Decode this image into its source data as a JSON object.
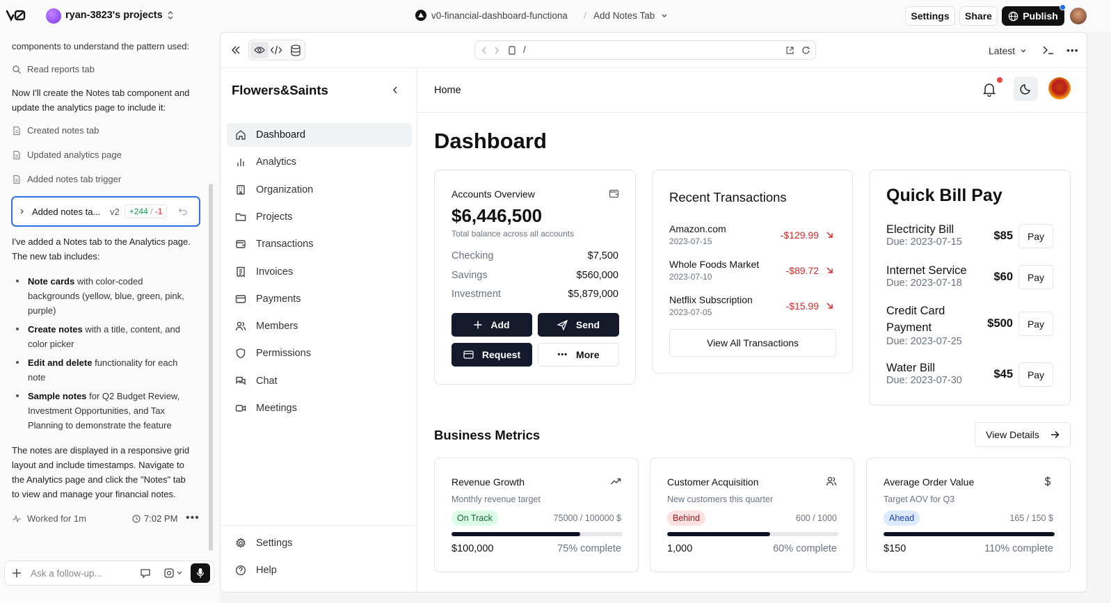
{
  "topbar": {
    "project": "ryan-3823's projects",
    "chat_title": "v0-financial-dashboard-functiona",
    "version_title": "Add Notes Tab",
    "settings": "Settings",
    "share": "Share",
    "publish": "Publish"
  },
  "chat": {
    "intro_cut": "components to understand the pattern used:",
    "step_read": "Read reports tab",
    "para1": [
      "Now I'll create the Notes tab component and",
      "update the analytics page to include it:"
    ],
    "steps": [
      "Created notes tab",
      "Updated analytics page",
      "Added notes tab trigger"
    ],
    "version_card": {
      "label": "Added notes ta...",
      "version": "v2",
      "added": "+244",
      "sep": "/",
      "removed": "-1"
    },
    "para2": [
      "I've added a Notes tab to the Analytics page.",
      "The new tab includes:"
    ],
    "bullets": [
      {
        "bold": "Note cards",
        "rest": " with color-coded backgrounds (yellow, blue, green, pink, purple)"
      },
      {
        "bold": "Create notes",
        "rest": " with a title, content, and color picker"
      },
      {
        "bold": "Edit and delete",
        "rest": " functionality for each note"
      },
      {
        "bold": "Sample notes",
        "rest": " for Q2 Budget Review, Investment Opportunities, and Tax Planning to demonstrate the feature"
      }
    ],
    "para3": [
      "The notes are displayed in a responsive grid",
      "layout and include timestamps. Navigate to",
      "the Analytics page and click the \"Notes\" tab",
      "to view and manage your financial notes."
    ],
    "worked": "Worked for 1m",
    "time": "7:02 PM",
    "input_placeholder": "Ask a follow-up..."
  },
  "preview_toolbar": {
    "url": "/",
    "latest": "Latest"
  },
  "app": {
    "brand": "Flowers&Saints",
    "breadcrumb": "Home",
    "nav": [
      {
        "label": "Dashboard",
        "icon": "home-icon",
        "active": true
      },
      {
        "label": "Analytics",
        "icon": "bar-chart-icon"
      },
      {
        "label": "Organization",
        "icon": "building-icon"
      },
      {
        "label": "Projects",
        "icon": "folder-icon"
      },
      {
        "label": "Transactions",
        "icon": "wallet-icon"
      },
      {
        "label": "Invoices",
        "icon": "receipt-icon"
      },
      {
        "label": "Payments",
        "icon": "credit-card-icon"
      },
      {
        "label": "Members",
        "icon": "users-icon"
      },
      {
        "label": "Permissions",
        "icon": "shield-icon"
      },
      {
        "label": "Chat",
        "icon": "chat-icon"
      },
      {
        "label": "Meetings",
        "icon": "video-icon"
      }
    ],
    "footer_nav": [
      {
        "label": "Settings",
        "icon": "gear-icon"
      },
      {
        "label": "Help",
        "icon": "help-icon"
      }
    ],
    "page_title": "Dashboard",
    "accounts": {
      "title": "Accounts Overview",
      "total": "$6,446,500",
      "subtitle": "Total balance across all accounts",
      "rows": [
        {
          "name": "Checking",
          "amount": "$7,500"
        },
        {
          "name": "Savings",
          "amount": "$560,000"
        },
        {
          "name": "Investment",
          "amount": "$5,879,000"
        }
      ],
      "buttons": {
        "add": "Add",
        "send": "Send",
        "request": "Request",
        "more": "More"
      }
    },
    "transactions": {
      "title": "Recent Transactions",
      "items": [
        {
          "name": "Amazon.com",
          "date": "2023-07-15",
          "amount": "-$129.99"
        },
        {
          "name": "Whole Foods Market",
          "date": "2023-07-10",
          "amount": "-$89.72"
        },
        {
          "name": "Netflix Subscription",
          "date": "2023-07-05",
          "amount": "-$15.99"
        }
      ],
      "view_all": "View All Transactions"
    },
    "bills": {
      "title": "Quick Bill Pay",
      "pay_label": "Pay",
      "items": [
        {
          "name": "Electricity Bill",
          "due": "Due: 2023-07-15",
          "amount": "$85"
        },
        {
          "name": "Internet Service",
          "due": "Due: 2023-07-18",
          "amount": "$60"
        },
        {
          "name": "Credit Card Payment",
          "name_lines": [
            "Credit Card",
            "Payment"
          ],
          "due": "Due: 2023-07-25",
          "amount": "$500"
        },
        {
          "name": "Water Bill",
          "due": "Due: 2023-07-30",
          "amount": "$45"
        }
      ]
    },
    "metrics": {
      "title": "Business Metrics",
      "view_details": "View Details",
      "cards": [
        {
          "title": "Revenue Growth",
          "subtitle": "Monthly revenue target",
          "status": "On Track",
          "status_color": "#dcfce7",
          "status_text_color": "#166534",
          "ratio": "75000 / 100000 $",
          "progress": 0.75,
          "value": "$100,000",
          "complete": "75% complete",
          "icon": "trending-up-icon"
        },
        {
          "title": "Customer Acquisition",
          "subtitle": "New customers this quarter",
          "status": "Behind",
          "status_color": "#fee2e2",
          "status_text_color": "#991b1b",
          "ratio": "600 / 1000",
          "progress": 0.6,
          "value": "1,000",
          "complete": "60% complete",
          "icon": "users-icon"
        },
        {
          "title": "Average Order Value",
          "subtitle": "Target AOV for Q3",
          "status": "Ahead",
          "status_color": "#dbeafe",
          "status_text_color": "#1e40af",
          "ratio": "165 / 150 $",
          "progress": 1.0,
          "value": "$150",
          "complete": "110% complete",
          "icon": "dollar-icon"
        }
      ]
    }
  }
}
